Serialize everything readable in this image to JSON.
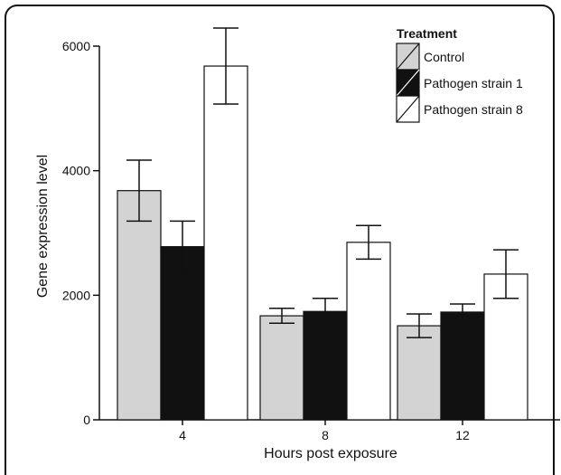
{
  "chart_data": {
    "type": "bar",
    "title": "",
    "xlabel": "Hours post exposure",
    "ylabel": "Gene expression level",
    "categories": [
      "4",
      "8",
      "12"
    ],
    "ylim": [
      0,
      6000
    ],
    "yticks": [
      0,
      2000,
      4000,
      6000
    ],
    "grid": false,
    "legend": {
      "title": "Treatment",
      "placement": "top-right"
    },
    "series": [
      {
        "name": "Control",
        "color": "#d3d3d3",
        "values": [
          3680,
          1670,
          1510
        ],
        "err_low": [
          3190,
          1550,
          1320
        ],
        "err_high": [
          4170,
          1790,
          1700
        ]
      },
      {
        "name": "Pathogen strain 1",
        "color": "#111111",
        "values": [
          2780,
          1740,
          1730
        ],
        "err_low": [
          2370,
          1560,
          1600
        ],
        "err_high": [
          3190,
          1950,
          1860
        ]
      },
      {
        "name": "Pathogen strain 8",
        "color": "#ffffff",
        "values": [
          5680,
          2850,
          2340
        ],
        "err_low": [
          5070,
          2580,
          1950
        ],
        "err_high": [
          6290,
          3120,
          2730
        ]
      }
    ]
  }
}
